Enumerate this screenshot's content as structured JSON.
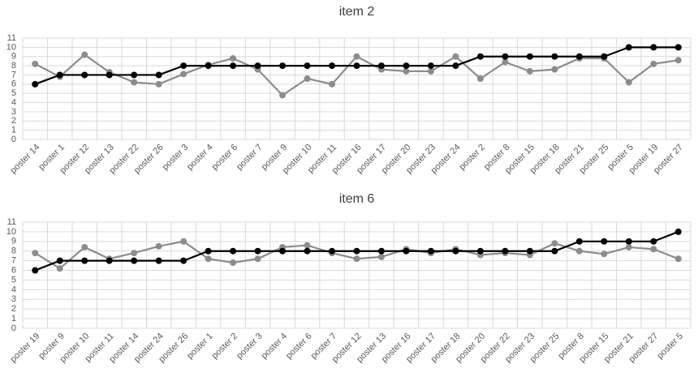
{
  "chart_data": [
    {
      "type": "line",
      "title": "item 2",
      "categories": [
        "poster 14",
        "poster 1",
        "poster 12",
        "poster 13",
        "poster 22",
        "poster 26",
        "poster 3",
        "poster 4",
        "poster 6",
        "poster 7",
        "poster 9",
        "poster 10",
        "poster 11",
        "poster 16",
        "poster 17",
        "poster 20",
        "poster 23",
        "poster 24",
        "poster 2",
        "poster 8",
        "poster 15",
        "poster 18",
        "poster 21",
        "poster 25",
        "poster 5",
        "poster 19",
        "poster 27"
      ],
      "series": [
        {
          "color": "#8c8c8c",
          "values": [
            8.2,
            6.8,
            9.2,
            7.3,
            6.2,
            6.0,
            7.1,
            8.1,
            8.8,
            7.6,
            4.8,
            6.6,
            6.0,
            9.0,
            7.6,
            7.4,
            7.4,
            9.0,
            6.6,
            8.4,
            7.4,
            7.6,
            8.8,
            8.8,
            6.2,
            8.2,
            8.6
          ]
        },
        {
          "color": "#000000",
          "values": [
            6,
            7,
            7,
            7,
            7,
            7,
            8,
            8,
            8,
            8,
            8,
            8,
            8,
            8,
            8,
            8,
            8,
            8,
            9,
            9,
            9,
            9,
            9,
            9,
            10,
            10,
            10
          ]
        }
      ],
      "ylim": [
        0,
        11
      ],
      "yticks": [
        0,
        1,
        2,
        3,
        4,
        5,
        6,
        7,
        8,
        9,
        10,
        11
      ],
      "grid": true
    },
    {
      "type": "line",
      "title": "item 6",
      "categories": [
        "poster 19",
        "poster 9",
        "poster 10",
        "poster 11",
        "poster 14",
        "poster 24",
        "poster 26",
        "poster 1",
        "poster 2",
        "poster 3",
        "poster 4",
        "poster 6",
        "poster 7",
        "poster 12",
        "poster 13",
        "poster 16",
        "poster 17",
        "poster 18",
        "poster 20",
        "poster 22",
        "poster 23",
        "poster 25",
        "poster 8",
        "poster 15",
        "poster 21",
        "poster 27",
        "poster 5"
      ],
      "series": [
        {
          "color": "#8c8c8c",
          "values": [
            7.8,
            6.2,
            8.4,
            7.2,
            7.8,
            8.5,
            9.0,
            7.2,
            6.8,
            7.2,
            8.4,
            8.6,
            7.8,
            7.2,
            7.4,
            8.2,
            7.8,
            8.2,
            7.6,
            7.8,
            7.6,
            8.8,
            8.0,
            7.7,
            8.4,
            8.2,
            7.2
          ]
        },
        {
          "color": "#000000",
          "values": [
            6,
            7,
            7,
            7,
            7,
            7,
            7,
            8,
            8,
            8,
            8,
            8,
            8,
            8,
            8,
            8,
            8,
            8,
            8,
            8,
            8,
            8,
            9,
            9,
            9,
            9,
            10
          ]
        }
      ],
      "ylim": [
        0,
        11
      ],
      "yticks": [
        0,
        1,
        2,
        3,
        4,
        5,
        6,
        7,
        8,
        9,
        10,
        11
      ],
      "grid": true
    }
  ]
}
